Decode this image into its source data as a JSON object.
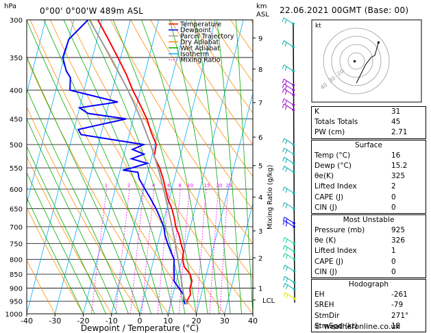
{
  "header": {
    "pressure_unit": "hPa",
    "location": "0°00' 0°00'W 489m ASL",
    "height_unit": "km",
    "height_unit2": "ASL",
    "datetime": "22.06.2021 00GMT (Base: 00)"
  },
  "legend": [
    {
      "label": "Temperature",
      "color": "#ff0000"
    },
    {
      "label": "Dewpoint",
      "color": "#0000ff"
    },
    {
      "label": "Parcel Trajectory",
      "color": "#999999"
    },
    {
      "label": "Dry Adiabat",
      "color": "#ff8c00"
    },
    {
      "label": "Wet Adiabat",
      "color": "#00aa00"
    },
    {
      "label": "Isotherm",
      "color": "#00aaff"
    },
    {
      "label": "Mixing Ratio",
      "color": "#ff00ff"
    }
  ],
  "chart_data": {
    "type": "line",
    "xlabel": "Dewpoint / Temperature (°C)",
    "ylabel": "hPa",
    "x_ticks": [
      "-40",
      "-30",
      "-20",
      "-10",
      "0",
      "10",
      "20",
      "30",
      "40"
    ],
    "pressure_ticks": [
      "300",
      "350",
      "400",
      "450",
      "500",
      "550",
      "600",
      "650",
      "700",
      "750",
      "800",
      "850",
      "900",
      "950",
      "1000"
    ],
    "height_ticks": [
      {
        "p": 323,
        "label": "9"
      },
      {
        "p": 367,
        "label": "8"
      },
      {
        "p": 421,
        "label": "7"
      },
      {
        "p": 485,
        "label": "6"
      },
      {
        "p": 545,
        "label": "5"
      },
      {
        "p": 620,
        "label": "4"
      },
      {
        "p": 712,
        "label": "3"
      },
      {
        "p": 795,
        "label": "2"
      },
      {
        "p": 900,
        "label": "1"
      },
      {
        "p": 945,
        "label": "LCL"
      }
    ],
    "mixing_ratio_labels": [
      {
        "w": 1,
        "label": "1"
      },
      {
        "w": 2,
        "label": "2"
      },
      {
        "w": 3,
        "label": "3"
      },
      {
        "w": 4,
        "label": "4"
      },
      {
        "w": 6,
        "label": "6"
      },
      {
        "w": 8,
        "label": "8"
      },
      {
        "w": 10,
        "label": "10"
      },
      {
        "w": 15,
        "label": "15"
      },
      {
        "w": 20,
        "label": "20"
      },
      {
        "w": 25,
        "label": "25"
      }
    ],
    "right_axis_label": "Mixing Ratio (g/kg)",
    "ylim": [
      300,
      1000
    ],
    "xlim": [
      -40,
      40
    ],
    "series": [
      {
        "name": "Temperature",
        "color": "#ff0000",
        "p": [
          962,
          950,
          925,
          900,
          875,
          850,
          825,
          800,
          775,
          750,
          725,
          700,
          675,
          650,
          625,
          600,
          575,
          550,
          525,
          500,
          475,
          450,
          425,
          400,
          375,
          350,
          325,
          300
        ],
        "t": [
          16,
          15.5,
          16.2,
          15.4,
          15.5,
          14.2,
          11.5,
          10.2,
          9.8,
          8.2,
          6.8,
          4.8,
          3.5,
          1.8,
          -0.5,
          -2.2,
          -4.0,
          -6.2,
          -9.2,
          -9.5,
          -12.5,
          -15.2,
          -18.8,
          -22.8,
          -26.5,
          -31.0,
          -36.0,
          -41.5
        ]
      },
      {
        "name": "Dewpoint",
        "color": "#0000ff",
        "p": [
          962,
          950,
          925,
          900,
          875,
          850,
          825,
          800,
          775,
          750,
          725,
          700,
          675,
          650,
          625,
          600,
          575,
          560,
          555,
          550,
          540,
          530,
          520,
          510,
          500,
          480,
          470,
          450,
          440,
          430,
          420,
          400,
          380,
          370,
          350,
          325,
          300
        ],
        "t": [
          15.2,
          14.5,
          13.8,
          11.5,
          9.2,
          8.6,
          7.8,
          7.2,
          5.3,
          3.5,
          1.8,
          0.6,
          -1.5,
          -3.8,
          -6.5,
          -9.5,
          -12.5,
          -13.5,
          -19.0,
          -16.0,
          -11.0,
          -17.0,
          -13.0,
          -17.5,
          -14.0,
          -37.0,
          -38.5,
          -22.5,
          -36.5,
          -40.0,
          -27.0,
          -45.0,
          -46.0,
          -48.0,
          -50.5,
          -50.0,
          -45.0
        ]
      },
      {
        "name": "Parcel Trajectory",
        "color": "#999999",
        "p": [
          962,
          940,
          900,
          850,
          800,
          750,
          700,
          650,
          600,
          550,
          500,
          450,
          400,
          350,
          300
        ],
        "t": [
          16,
          14.4,
          12.8,
          10.8,
          8.6,
          6.2,
          3.5,
          0.5,
          -2.9,
          -6.8,
          -11.5,
          -17.3,
          -24.5,
          -33.5,
          -44.5
        ]
      }
    ]
  },
  "winds": [
    {
      "p": 305,
      "color": "#00aaaa"
    },
    {
      "p": 335,
      "color": "#00aaaa"
    },
    {
      "p": 370,
      "color": "#00aaaa"
    },
    {
      "p": 392,
      "color": "#9900cc"
    },
    {
      "p": 400,
      "color": "#9900cc"
    },
    {
      "p": 408,
      "color": "#9900cc"
    },
    {
      "p": 425,
      "color": "#9900cc"
    },
    {
      "p": 434,
      "color": "#9900cc"
    },
    {
      "p": 500,
      "color": "#00aaaa"
    },
    {
      "p": 520,
      "color": "#00aaaa"
    },
    {
      "p": 540,
      "color": "#00aaaa"
    },
    {
      "p": 560,
      "color": "#00aaaa"
    },
    {
      "p": 610,
      "color": "#00aaaa"
    },
    {
      "p": 650,
      "color": "#00aaaa"
    },
    {
      "p": 690,
      "color": "#0000ff"
    },
    {
      "p": 700,
      "color": "#0000ff"
    },
    {
      "p": 750,
      "color": "#00cc99"
    },
    {
      "p": 775,
      "color": "#00cc99"
    },
    {
      "p": 800,
      "color": "#00cc99"
    },
    {
      "p": 840,
      "color": "#00aaaa"
    },
    {
      "p": 880,
      "color": "#00aaaa"
    },
    {
      "p": 905,
      "color": "#00aaaa"
    },
    {
      "p": 940,
      "color": "#dddd00"
    }
  ],
  "hodograph": {
    "label": "kt",
    "ring_labels": [
      "40",
      "30",
      "20"
    ],
    "u": [
      0,
      2,
      5,
      10,
      16,
      20,
      24
    ],
    "v": [
      -24,
      -20,
      -14,
      -4,
      4,
      6,
      20
    ]
  },
  "indices": {
    "rows": [
      {
        "label": "K",
        "value": "31"
      },
      {
        "label": "Totals Totals",
        "value": "45"
      },
      {
        "label": "PW (cm)",
        "value": "2.71"
      }
    ]
  },
  "surface": {
    "title": "Surface",
    "rows": [
      {
        "label": "Temp (°C)",
        "value": "16"
      },
      {
        "label": "Dewp (°C)",
        "value": "15.2"
      },
      {
        "label": "θe(K)",
        "value": "325"
      },
      {
        "label": "Lifted Index",
        "value": "2"
      },
      {
        "label": "CAPE (J)",
        "value": "0"
      },
      {
        "label": "CIN (J)",
        "value": "0"
      }
    ]
  },
  "most_unstable": {
    "title": "Most Unstable",
    "rows": [
      {
        "label": "Pressure (mb)",
        "value": "925"
      },
      {
        "label": "θe (K)",
        "value": "326"
      },
      {
        "label": "Lifted Index",
        "value": "1"
      },
      {
        "label": "CAPE (J)",
        "value": "0"
      },
      {
        "label": "CIN (J)",
        "value": "0"
      }
    ]
  },
  "hodograph_table": {
    "title": "Hodograph",
    "rows": [
      {
        "label": "EH",
        "value": "-261"
      },
      {
        "label": "SREH",
        "value": "-79"
      },
      {
        "label": "StmDir",
        "value": "271°"
      },
      {
        "label": "StmSpd (kt)",
        "value": "18"
      }
    ]
  },
  "footer": "© weatheronline.co.uk"
}
